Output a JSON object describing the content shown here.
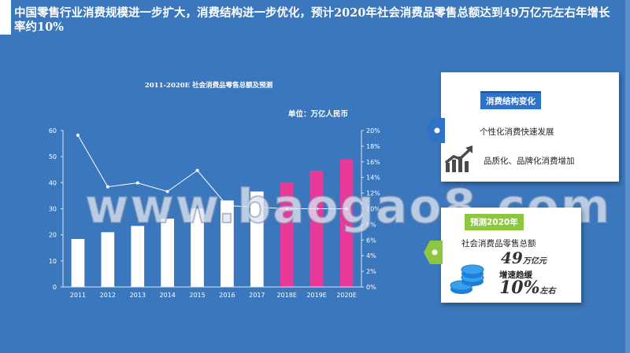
{
  "headline": "中国零售行业消费规模进一步扩大，消费结构进一步优化，预计2020年社会消费品零售总额达到49万亿元左右年增长率约10%",
  "watermark": "www.baogao8.com",
  "chart_data": {
    "type": "bar",
    "title": "2011-2020E 社会消费品零售总额及预测",
    "unit_label": "单位：万亿人民币",
    "categories": [
      "2011",
      "2012",
      "2013",
      "2014",
      "2015",
      "2016",
      "2017",
      "2018E",
      "2019E",
      "2020E"
    ],
    "series": [
      {
        "type": "bar",
        "axis": "left",
        "values": [
          18.4,
          21.0,
          23.4,
          26.2,
          30.1,
          33.2,
          36.6,
          40.0,
          44.6,
          49.0
        ],
        "colors": [
          "#ffffff",
          "#ffffff",
          "#ffffff",
          "#ffffff",
          "#ffffff",
          "#ffffff",
          "#ffffff",
          "#e8399a",
          "#e8399a",
          "#e8399a"
        ]
      },
      {
        "type": "line",
        "axis": "right",
        "values": [
          19.4,
          12.8,
          13.3,
          12.2,
          14.9,
          10.4,
          10.2,
          10.0,
          10.0,
          10.0
        ],
        "color": "#ffffff"
      }
    ],
    "ylim": [
      0,
      60
    ],
    "yticks": [
      0,
      10,
      20,
      30,
      40,
      50,
      60
    ],
    "y2lim": [
      0,
      20
    ],
    "y2ticks": [
      0,
      2,
      4,
      6,
      8,
      10,
      12,
      14,
      16,
      18,
      20
    ],
    "y2_suffix": "%"
  },
  "card1": {
    "tag": "消费结构变化",
    "item1": "个性化消费快速发展",
    "item2": "品质化、品牌化消费增加",
    "icon": "rising-chart-icon",
    "tag_color": "#2f72c7",
    "arrow_color": "#2f72c7"
  },
  "card2": {
    "tag": "预测2020年",
    "label": "社会消费品零售总额",
    "value": "49",
    "value_unit": "万亿元",
    "growth_label": "增速趋缓",
    "growth_value": "10%",
    "growth_suffix": "左右",
    "icon": "coins-icon",
    "tag_color": "#8dc73f",
    "arrow_color": "#8dc73f",
    "icon_color": "#1e7fd6"
  }
}
